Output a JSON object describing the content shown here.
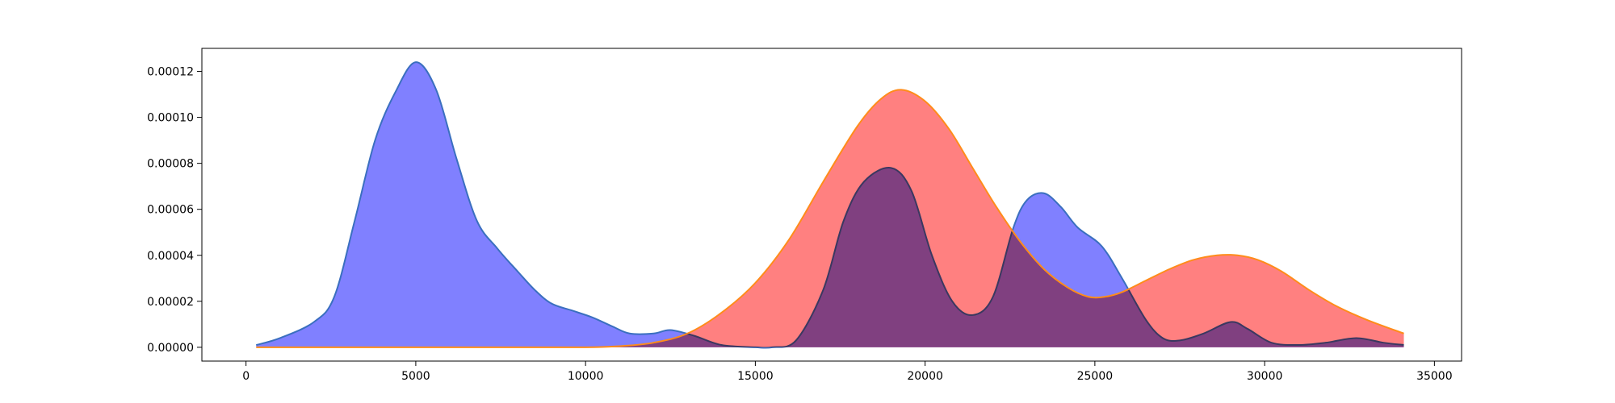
{
  "chart_data": {
    "type": "area",
    "title": "",
    "xlabel": "",
    "ylabel": "",
    "xlim": [
      -1300,
      35800
    ],
    "ylim": [
      -6e-06,
      0.00013
    ],
    "xticks": [
      0,
      5000,
      10000,
      15000,
      20000,
      25000,
      30000,
      35000
    ],
    "xtick_labels": [
      "0",
      "5000",
      "10000",
      "15000",
      "20000",
      "25000",
      "30000",
      "35000"
    ],
    "yticks": [
      0.0,
      2e-05,
      4e-05,
      6e-05,
      8e-05,
      0.0001,
      0.00012
    ],
    "ytick_labels": [
      "0.00000",
      "0.00002",
      "0.00004",
      "0.00006",
      "0.00008",
      "0.00010",
      "0.00012"
    ],
    "grid": false,
    "legend": "none",
    "series": [
      {
        "fill_color": "#8080ff",
        "line_color": "#3a6fbf",
        "x": [
          300,
          1000,
          2000,
          2600,
          3200,
          3800,
          4400,
          5000,
          5600,
          6200,
          6800,
          7400,
          8000,
          8500,
          9000,
          9600,
          10200,
          10800,
          11300,
          12000,
          12500,
          13200,
          14000,
          15000,
          15500,
          16200,
          17000,
          17600,
          18200,
          19000,
          19600,
          20200,
          20800,
          21400,
          22000,
          22600,
          23000,
          23500,
          24000,
          24500,
          25200,
          25800,
          26500,
          27000,
          27500,
          28200,
          29000,
          29500,
          30200,
          31000,
          31800,
          32700,
          33500,
          34100
        ],
        "y": [
          1e-06,
          4e-06,
          1.1e-05,
          2.2e-05,
          5.5e-05,
          9e-05,
          0.000111,
          0.000124,
          0.000112,
          8.2e-05,
          5.5e-05,
          4.3e-05,
          3.3e-05,
          2.5e-05,
          1.9e-05,
          1.6e-05,
          1.3e-05,
          9e-06,
          6e-06,
          6e-06,
          7.5e-06,
          5e-06,
          1e-06,
          0.0,
          0.0,
          3e-06,
          2.5e-05,
          5.5e-05,
          7.2e-05,
          7.8e-05,
          6.8e-05,
          4e-05,
          2e-05,
          1.4e-05,
          2.2e-05,
          5.2e-05,
          6.4e-05,
          6.7e-05,
          6.1e-05,
          5.2e-05,
          4.4e-05,
          3e-05,
          1.2e-05,
          4e-06,
          3e-06,
          6e-06,
          1.1e-05,
          8e-06,
          2e-06,
          1e-06,
          2e-06,
          4e-06,
          2e-06,
          1e-06
        ]
      },
      {
        "fill_color": "#ff8080",
        "line_color": "#ff8c1a",
        "x": [
          300,
          2000,
          4000,
          6000,
          8000,
          10000,
          11000,
          12000,
          13000,
          14000,
          15000,
          16000,
          17000,
          18000,
          18700,
          19300,
          20000,
          20700,
          21400,
          22100,
          22800,
          23500,
          24200,
          24800,
          25300,
          25800,
          26500,
          27200,
          27900,
          28600,
          29200,
          29800,
          30500,
          31300,
          32100,
          33000,
          34100
        ],
        "y": [
          0.0,
          0.0,
          0.0,
          0.0,
          0.0,
          0.0,
          5e-07,
          2e-06,
          6e-06,
          1.5e-05,
          2.8e-05,
          4.7e-05,
          7.2e-05,
          9.6e-05,
          0.000108,
          0.000112,
          0.000107,
          9.5e-05,
          7.8e-05,
          6.1e-05,
          4.6e-05,
          3.4e-05,
          2.6e-05,
          2.2e-05,
          2.2e-05,
          2.4e-05,
          2.9e-05,
          3.4e-05,
          3.8e-05,
          4e-05,
          4e-05,
          3.8e-05,
          3.3e-05,
          2.5e-05,
          1.8e-05,
          1.2e-05,
          6e-06
        ]
      }
    ]
  },
  "colors": {
    "series_a_fill": "#8080ff",
    "series_b_fill": "#ff8080",
    "overlap": "#c03e7f",
    "axes": "#000000"
  }
}
